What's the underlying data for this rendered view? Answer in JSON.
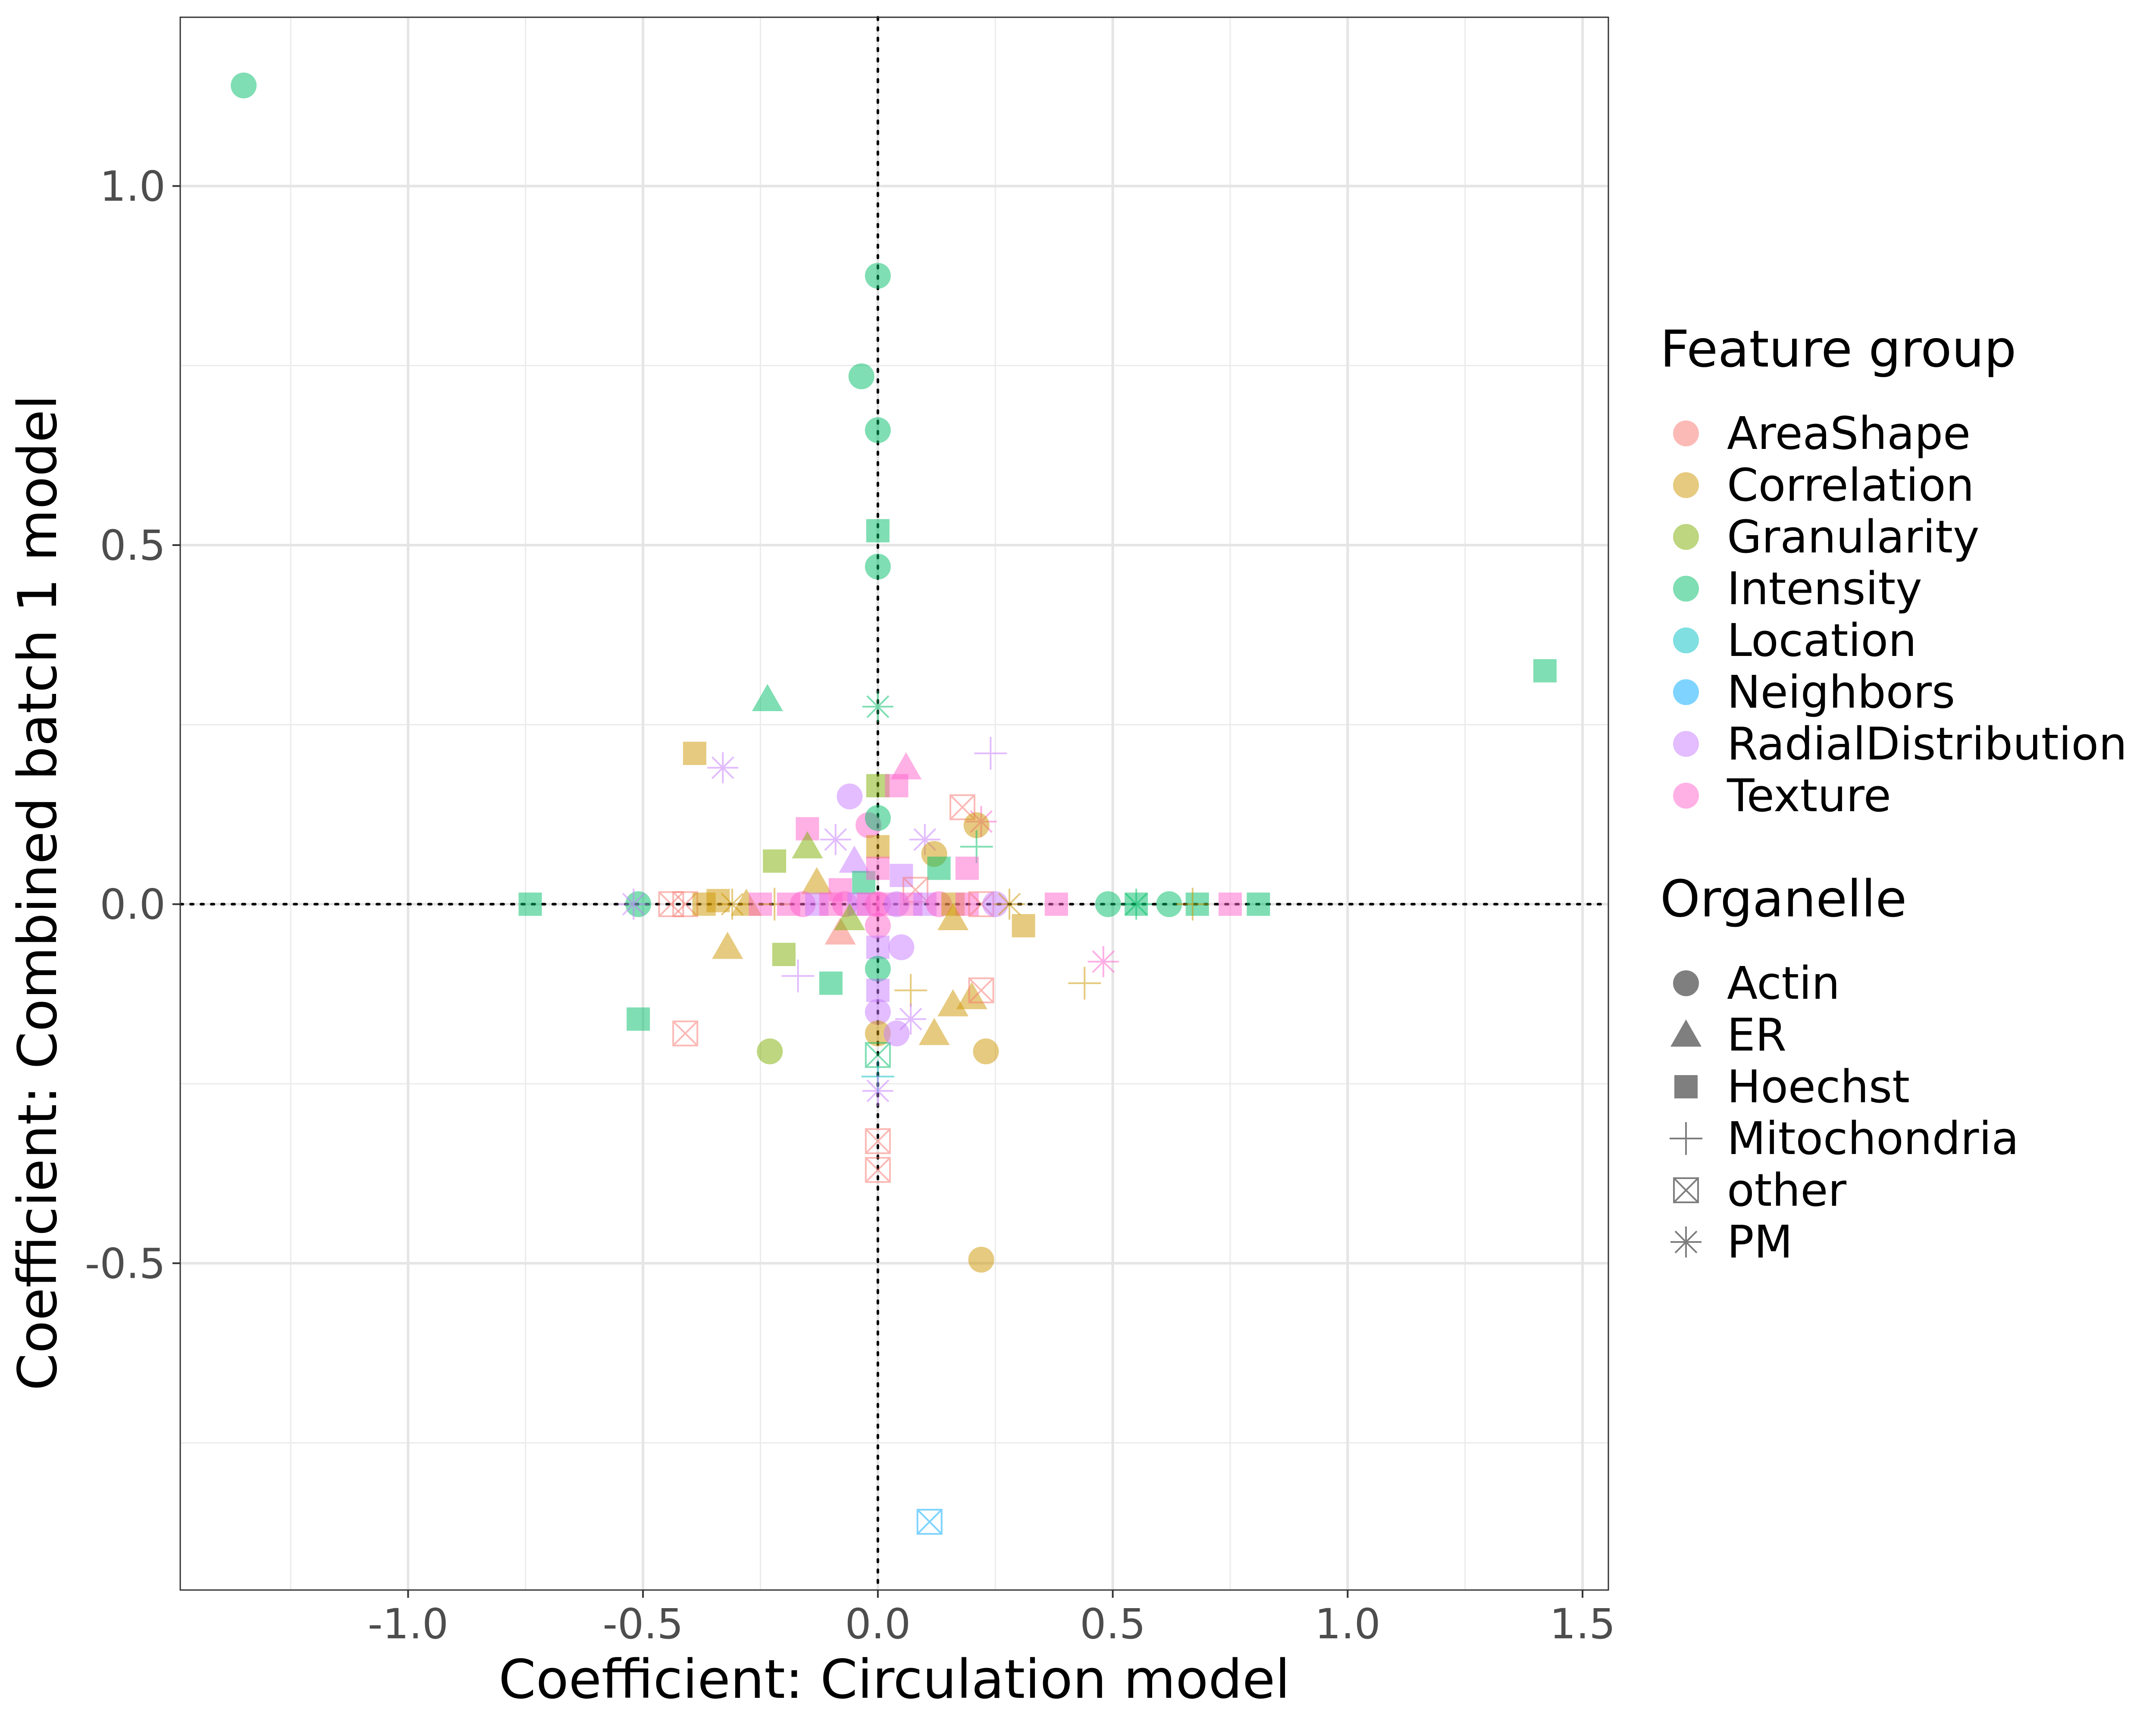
{
  "chart_data": {
    "type": "scatter",
    "xlabel": "Coefficient: Circulation model",
    "ylabel": "Coefficient: Combined batch 1 model",
    "xlim": [
      -1.485,
      1.555
    ],
    "ylim": [
      -0.955,
      1.235
    ],
    "x_ticks": [
      -1.0,
      -0.5,
      0.0,
      0.5,
      1.0,
      1.5
    ],
    "x_tick_labels": [
      "-1.0",
      "-0.5",
      "0.0",
      "0.5",
      "1.0",
      "1.5"
    ],
    "y_ticks": [
      -0.5,
      0.0,
      0.5,
      1.0
    ],
    "y_tick_labels": [
      "-0.5",
      "0.0",
      "0.5",
      "1.0"
    ],
    "grid": true,
    "reference_lines": [
      {
        "axis": "x",
        "value": 0,
        "style": "dotted"
      },
      {
        "axis": "y",
        "value": 0,
        "style": "dotted"
      }
    ],
    "legend_placement": "right",
    "legend_color": {
      "title": "Feature group",
      "entries": [
        {
          "label": "AreaShape",
          "color": "#F8766D"
        },
        {
          "label": "Correlation",
          "color": "#CD9600"
        },
        {
          "label": "Granularity",
          "color": "#7CAE00"
        },
        {
          "label": "Intensity",
          "color": "#00BE67"
        },
        {
          "label": "Location",
          "color": "#00BFC4"
        },
        {
          "label": "Neighbors",
          "color": "#00A9FF"
        },
        {
          "label": "RadialDistribution",
          "color": "#C77CFF"
        },
        {
          "label": "Texture",
          "color": "#FF61CC"
        }
      ]
    },
    "legend_shape": {
      "title": "Organelle",
      "entries": [
        {
          "label": "Actin",
          "shape": "circle"
        },
        {
          "label": "ER",
          "shape": "triangle"
        },
        {
          "label": "Hoechst",
          "shape": "square"
        },
        {
          "label": "Mitochondria",
          "shape": "plus"
        },
        {
          "label": "other",
          "shape": "boxx"
        },
        {
          "label": "PM",
          "shape": "asterisk"
        }
      ]
    },
    "points": [
      {
        "x": -1.35,
        "y": 1.14,
        "group": "Intensity",
        "shape": "circle"
      },
      {
        "x": 0.0,
        "y": 0.875,
        "group": "Intensity",
        "shape": "circle"
      },
      {
        "x": -0.035,
        "y": 0.735,
        "group": "Intensity",
        "shape": "circle"
      },
      {
        "x": 0.0,
        "y": 0.66,
        "group": "Intensity",
        "shape": "circle"
      },
      {
        "x": 0.0,
        "y": 0.52,
        "group": "Intensity",
        "shape": "square"
      },
      {
        "x": 0.0,
        "y": 0.47,
        "group": "Intensity",
        "shape": "circle"
      },
      {
        "x": 1.42,
        "y": 0.325,
        "group": "Intensity",
        "shape": "square"
      },
      {
        "x": -0.235,
        "y": 0.285,
        "group": "Intensity",
        "shape": "triangle"
      },
      {
        "x": 0.0,
        "y": 0.275,
        "group": "Intensity",
        "shape": "asterisk"
      },
      {
        "x": -0.39,
        "y": 0.21,
        "group": "Correlation",
        "shape": "square"
      },
      {
        "x": -0.33,
        "y": 0.19,
        "group": "RadialDistribution",
        "shape": "asterisk"
      },
      {
        "x": 0.24,
        "y": 0.21,
        "group": "RadialDistribution",
        "shape": "plus"
      },
      {
        "x": 0.06,
        "y": 0.19,
        "group": "Texture",
        "shape": "triangle"
      },
      {
        "x": 0.0,
        "y": 0.165,
        "group": "Granularity",
        "shape": "square"
      },
      {
        "x": 0.04,
        "y": 0.165,
        "group": "Texture",
        "shape": "square"
      },
      {
        "x": -0.06,
        "y": 0.15,
        "group": "RadialDistribution",
        "shape": "circle"
      },
      {
        "x": 0.18,
        "y": 0.135,
        "group": "AreaShape",
        "shape": "boxx"
      },
      {
        "x": 0.22,
        "y": 0.115,
        "group": "Texture",
        "shape": "asterisk"
      },
      {
        "x": 0.21,
        "y": 0.11,
        "group": "Correlation",
        "shape": "circle"
      },
      {
        "x": -0.15,
        "y": 0.105,
        "group": "Texture",
        "shape": "square"
      },
      {
        "x": -0.02,
        "y": 0.11,
        "group": "Texture",
        "shape": "circle"
      },
      {
        "x": 0.0,
        "y": 0.12,
        "group": "Intensity",
        "shape": "circle"
      },
      {
        "x": -0.09,
        "y": 0.09,
        "group": "RadialDistribution",
        "shape": "asterisk"
      },
      {
        "x": 0.1,
        "y": 0.09,
        "group": "RadialDistribution",
        "shape": "asterisk"
      },
      {
        "x": -0.15,
        "y": 0.08,
        "group": "Granularity",
        "shape": "triangle"
      },
      {
        "x": 0.12,
        "y": 0.07,
        "group": "Correlation",
        "shape": "circle"
      },
      {
        "x": 0.21,
        "y": 0.08,
        "group": "Intensity",
        "shape": "plus"
      },
      {
        "x": -0.22,
        "y": 0.06,
        "group": "Granularity",
        "shape": "square"
      },
      {
        "x": 0.13,
        "y": 0.05,
        "group": "Intensity",
        "shape": "square"
      },
      {
        "x": -0.05,
        "y": 0.06,
        "group": "RadialDistribution",
        "shape": "triangle"
      },
      {
        "x": 0.19,
        "y": 0.05,
        "group": "Texture",
        "shape": "square"
      },
      {
        "x": -0.13,
        "y": 0.03,
        "group": "Correlation",
        "shape": "triangle"
      },
      {
        "x": 0.05,
        "y": 0.04,
        "group": "RadialDistribution",
        "shape": "square"
      },
      {
        "x": -0.03,
        "y": 0.03,
        "group": "Intensity",
        "shape": "square"
      },
      {
        "x": -0.08,
        "y": 0.02,
        "group": "Texture",
        "shape": "square"
      },
      {
        "x": 0.08,
        "y": 0.02,
        "group": "AreaShape",
        "shape": "boxx"
      },
      {
        "x": -0.74,
        "y": 0.0,
        "group": "Intensity",
        "shape": "square"
      },
      {
        "x": -0.51,
        "y": 0.0,
        "group": "Intensity",
        "shape": "circle"
      },
      {
        "x": -0.52,
        "y": 0.0,
        "group": "RadialDistribution",
        "shape": "asterisk"
      },
      {
        "x": -0.44,
        "y": 0.0,
        "group": "AreaShape",
        "shape": "boxx"
      },
      {
        "x": -0.41,
        "y": 0.0,
        "group": "AreaShape",
        "shape": "boxx"
      },
      {
        "x": -0.37,
        "y": 0.0,
        "group": "Correlation",
        "shape": "square"
      },
      {
        "x": -0.34,
        "y": 0.005,
        "group": "Correlation",
        "shape": "square"
      },
      {
        "x": -0.31,
        "y": 0.0,
        "group": "Correlation",
        "shape": "asterisk"
      },
      {
        "x": -0.28,
        "y": 0.0,
        "group": "Correlation",
        "shape": "triangle"
      },
      {
        "x": -0.25,
        "y": 0.0,
        "group": "Texture",
        "shape": "square"
      },
      {
        "x": -0.22,
        "y": 0.0,
        "group": "Correlation",
        "shape": "plus"
      },
      {
        "x": -0.19,
        "y": 0.0,
        "group": "Texture",
        "shape": "square"
      },
      {
        "x": -0.16,
        "y": 0.0,
        "group": "Texture",
        "shape": "circle"
      },
      {
        "x": -0.13,
        "y": 0.0,
        "group": "RadialDistribution",
        "shape": "square"
      },
      {
        "x": -0.1,
        "y": 0.0,
        "group": "Texture",
        "shape": "square"
      },
      {
        "x": -0.07,
        "y": 0.0,
        "group": "Texture",
        "shape": "circle"
      },
      {
        "x": -0.04,
        "y": 0.0,
        "group": "RadialDistribution",
        "shape": "square"
      },
      {
        "x": -0.02,
        "y": 0.0,
        "group": "Texture",
        "shape": "square"
      },
      {
        "x": 0.0,
        "y": 0.0,
        "group": "Texture",
        "shape": "circle"
      },
      {
        "x": 0.02,
        "y": 0.0,
        "group": "Texture",
        "shape": "square"
      },
      {
        "x": 0.04,
        "y": 0.0,
        "group": "RadialDistribution",
        "shape": "circle"
      },
      {
        "x": 0.07,
        "y": 0.0,
        "group": "Texture",
        "shape": "square"
      },
      {
        "x": 0.1,
        "y": 0.0,
        "group": "RadialDistribution",
        "shape": "square"
      },
      {
        "x": 0.13,
        "y": 0.0,
        "group": "Texture",
        "shape": "circle"
      },
      {
        "x": 0.16,
        "y": 0.0,
        "group": "Correlation",
        "shape": "square"
      },
      {
        "x": 0.19,
        "y": 0.0,
        "group": "Texture",
        "shape": "square"
      },
      {
        "x": 0.22,
        "y": 0.0,
        "group": "AreaShape",
        "shape": "boxx"
      },
      {
        "x": 0.25,
        "y": 0.0,
        "group": "RadialDistribution",
        "shape": "circle"
      },
      {
        "x": 0.28,
        "y": 0.0,
        "group": "Correlation",
        "shape": "asterisk"
      },
      {
        "x": 0.38,
        "y": 0.0,
        "group": "Texture",
        "shape": "square"
      },
      {
        "x": 0.49,
        "y": 0.0,
        "group": "Intensity",
        "shape": "circle"
      },
      {
        "x": 0.55,
        "y": 0.0,
        "group": "Intensity",
        "shape": "asterisk"
      },
      {
        "x": 0.55,
        "y": 0.0,
        "group": "Intensity",
        "shape": "square"
      },
      {
        "x": 0.62,
        "y": 0.0,
        "group": "Intensity",
        "shape": "circle"
      },
      {
        "x": 0.68,
        "y": 0.0,
        "group": "Intensity",
        "shape": "square"
      },
      {
        "x": 0.67,
        "y": 0.0,
        "group": "Correlation",
        "shape": "plus"
      },
      {
        "x": 0.75,
        "y": 0.0,
        "group": "Texture",
        "shape": "square"
      },
      {
        "x": 0.81,
        "y": 0.0,
        "group": "Intensity",
        "shape": "square"
      },
      {
        "x": 0.0,
        "y": 0.08,
        "group": "Correlation",
        "shape": "square"
      },
      {
        "x": 0.0,
        "y": 0.05,
        "group": "Texture",
        "shape": "square"
      },
      {
        "x": 0.0,
        "y": -0.03,
        "group": "Texture",
        "shape": "circle"
      },
      {
        "x": 0.0,
        "y": -0.06,
        "group": "RadialDistribution",
        "shape": "square"
      },
      {
        "x": 0.0,
        "y": -0.09,
        "group": "Intensity",
        "shape": "circle"
      },
      {
        "x": 0.0,
        "y": -0.12,
        "group": "RadialDistribution",
        "shape": "square"
      },
      {
        "x": 0.0,
        "y": -0.15,
        "group": "RadialDistribution",
        "shape": "circle"
      },
      {
        "x": 0.0,
        "y": -0.18,
        "group": "Correlation",
        "shape": "circle"
      },
      {
        "x": 0.0,
        "y": -0.21,
        "group": "Intensity",
        "shape": "boxx"
      },
      {
        "x": 0.0,
        "y": -0.24,
        "group": "Location",
        "shape": "plus"
      },
      {
        "x": 0.0,
        "y": -0.26,
        "group": "RadialDistribution",
        "shape": "asterisk"
      },
      {
        "x": 0.0,
        "y": -0.33,
        "group": "AreaShape",
        "shape": "boxx"
      },
      {
        "x": 0.0,
        "y": -0.37,
        "group": "AreaShape",
        "shape": "boxx"
      },
      {
        "x": -0.32,
        "y": -0.06,
        "group": "Correlation",
        "shape": "triangle"
      },
      {
        "x": -0.2,
        "y": -0.07,
        "group": "Granularity",
        "shape": "square"
      },
      {
        "x": -0.17,
        "y": -0.1,
        "group": "RadialDistribution",
        "shape": "plus"
      },
      {
        "x": -0.1,
        "y": -0.11,
        "group": "Intensity",
        "shape": "square"
      },
      {
        "x": -0.08,
        "y": -0.04,
        "group": "AreaShape",
        "shape": "triangle"
      },
      {
        "x": -0.06,
        "y": -0.02,
        "group": "Granularity",
        "shape": "triangle"
      },
      {
        "x": 0.05,
        "y": -0.06,
        "group": "RadialDistribution",
        "shape": "circle"
      },
      {
        "x": 0.07,
        "y": -0.12,
        "group": "Correlation",
        "shape": "plus"
      },
      {
        "x": 0.07,
        "y": -0.16,
        "group": "RadialDistribution",
        "shape": "asterisk"
      },
      {
        "x": 0.04,
        "y": -0.18,
        "group": "RadialDistribution",
        "shape": "circle"
      },
      {
        "x": 0.12,
        "y": -0.18,
        "group": "Correlation",
        "shape": "triangle"
      },
      {
        "x": 0.16,
        "y": -0.14,
        "group": "Correlation",
        "shape": "triangle"
      },
      {
        "x": 0.2,
        "y": -0.13,
        "group": "Correlation",
        "shape": "triangle"
      },
      {
        "x": 0.16,
        "y": -0.02,
        "group": "Correlation",
        "shape": "triangle"
      },
      {
        "x": 0.22,
        "y": -0.12,
        "group": "AreaShape",
        "shape": "boxx"
      },
      {
        "x": 0.31,
        "y": -0.03,
        "group": "Correlation",
        "shape": "square"
      },
      {
        "x": 0.44,
        "y": -0.11,
        "group": "Correlation",
        "shape": "plus"
      },
      {
        "x": 0.48,
        "y": -0.08,
        "group": "Texture",
        "shape": "asterisk"
      },
      {
        "x": -0.51,
        "y": -0.16,
        "group": "Intensity",
        "shape": "square"
      },
      {
        "x": -0.41,
        "y": -0.18,
        "group": "AreaShape",
        "shape": "boxx"
      },
      {
        "x": -0.23,
        "y": -0.205,
        "group": "Granularity",
        "shape": "circle"
      },
      {
        "x": 0.23,
        "y": -0.205,
        "group": "Correlation",
        "shape": "circle"
      },
      {
        "x": 0.22,
        "y": -0.495,
        "group": "Correlation",
        "shape": "circle"
      },
      {
        "x": 0.11,
        "y": -0.86,
        "group": "Neighbors",
        "shape": "boxx"
      }
    ]
  }
}
